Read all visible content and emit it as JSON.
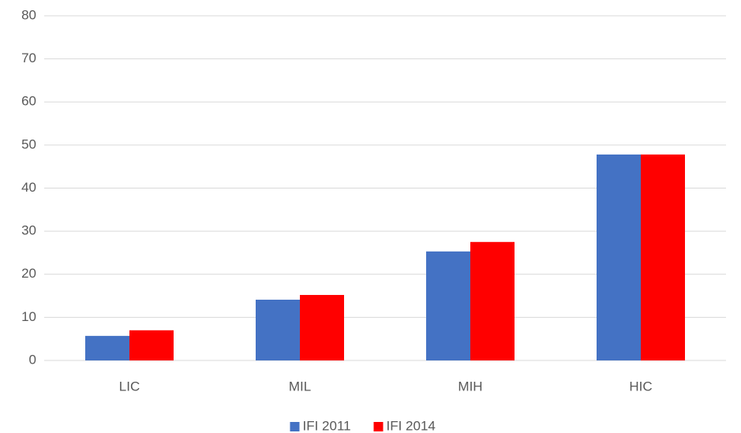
{
  "chart_data": {
    "type": "bar",
    "categories": [
      "LIC",
      "MIL",
      "MIH",
      "HIC"
    ],
    "series": [
      {
        "name": "IFI 2011",
        "color": "#4472c4",
        "values": [
          5.7,
          14.1,
          25.3,
          47.8
        ]
      },
      {
        "name": "IFI 2014",
        "color": "#ff0000",
        "values": [
          7.0,
          15.2,
          27.5,
          47.8
        ]
      }
    ],
    "ylim": [
      0,
      80
    ],
    "yticks": [
      0,
      10,
      20,
      30,
      40,
      50,
      60,
      70,
      80
    ],
    "grid": true,
    "legend": "bottom"
  }
}
